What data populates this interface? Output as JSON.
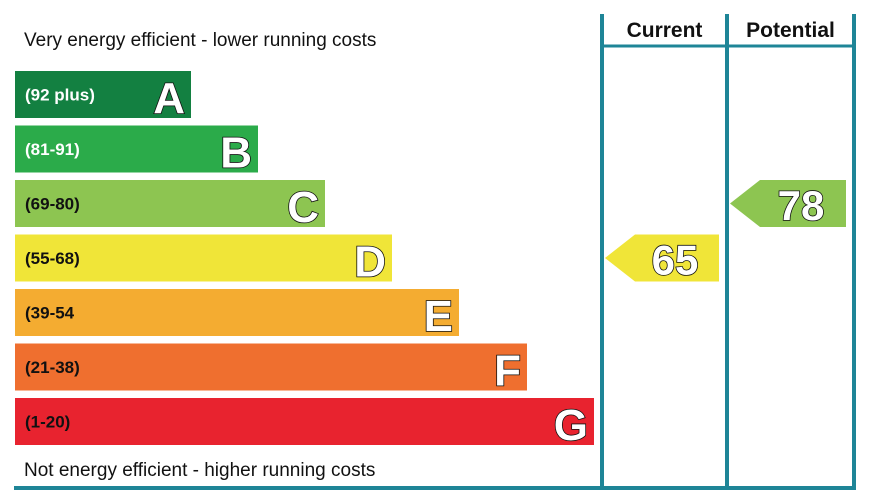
{
  "captions": {
    "top": "Very energy efficient - lower running costs",
    "bottom": "Not energy efficient - higher running costs"
  },
  "chart_data": {
    "type": "bar",
    "title": "",
    "categories": [
      "A",
      "B",
      "C",
      "D",
      "E",
      "F",
      "G"
    ],
    "bands": [
      {
        "letter": "A",
        "range": "(92 plus)",
        "color": "#138041",
        "range_text_color": "#ffffff"
      },
      {
        "letter": "B",
        "range": "(81-91)",
        "color": "#2bab4a",
        "range_text_color": "#ffffff"
      },
      {
        "letter": "C",
        "range": "(69-80)",
        "color": "#8dc551",
        "range_text_color": "#111111"
      },
      {
        "letter": "D",
        "range": "(55-68)",
        "color": "#f0e538",
        "range_text_color": "#111111"
      },
      {
        "letter": "E",
        "range": "(39-54",
        "color": "#f4ac31",
        "range_text_color": "#111111"
      },
      {
        "letter": "F",
        "range": "(21-38)",
        "color": "#ef6f2f",
        "range_text_color": "#111111"
      },
      {
        "letter": "G",
        "range": "(1-20)",
        "color": "#e8232f",
        "range_text_color": "#111111"
      }
    ],
    "columns": {
      "current": "Current",
      "potential": "Potential"
    },
    "current": {
      "value": 65,
      "band": "D",
      "color": "#f0e538"
    },
    "potential": {
      "value": 78,
      "band": "C",
      "color": "#8dc551"
    },
    "frame_color": "#1e8597"
  }
}
